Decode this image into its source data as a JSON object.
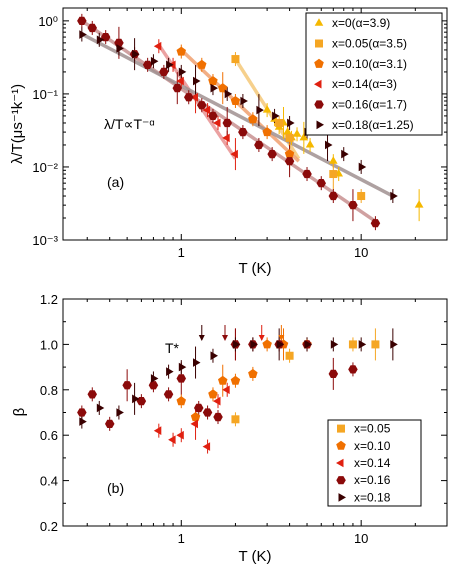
{
  "chart_data": [
    {
      "id": "a",
      "type": "scatter",
      "panel_label": "(a)",
      "xlabel": "T (K)",
      "ylabel": "λ/T(μs⁻¹k⁻¹)",
      "xscale": "log",
      "yscale": "log",
      "xlim": [
        0.22,
        30
      ],
      "ylim": [
        0.001,
        1.5
      ],
      "x_ticks": [
        1,
        10
      ],
      "y_ticks": [
        0.001,
        0.01,
        0.1,
        1
      ],
      "x_tick_labels": [
        "1",
        "10"
      ],
      "y_tick_labels": [
        "10⁻³",
        "10⁻²",
        "10⁻¹",
        "10⁰"
      ],
      "annotation": "λ/T∝T⁻ᵅ",
      "legend_position": "top-right",
      "series": [
        {
          "name": "x=0(α=3.9)",
          "marker": "triangle-up",
          "color": "#f5b800",
          "line_color": "#f5c878",
          "x": [
            3.0,
            3.3,
            3.5,
            3.7,
            3.9,
            4.1,
            4.4,
            4.8,
            5.2,
            7.0,
            7.5,
            21
          ],
          "y": [
            0.06,
            0.045,
            0.035,
            0.04,
            0.03,
            0.025,
            0.028,
            0.025,
            0.02,
            0.012,
            0.008,
            0.003
          ],
          "fit": [
            [
              2.0,
              0.3
            ],
            [
              4.5,
              0.013
            ]
          ]
        },
        {
          "name": "x=0.05(α=3.5)",
          "marker": "square",
          "color": "#f5a623",
          "line_color": "#f5c878",
          "x": [
            2.0,
            3.5,
            4.0,
            7.0,
            10
          ],
          "y": [
            0.3,
            0.04,
            0.025,
            0.008,
            0.004
          ],
          "fit": []
        },
        {
          "name": "x=0.10(α=3.1)",
          "marker": "pentagon",
          "color": "#f07000",
          "line_color": "#f0a070",
          "x": [
            1.0,
            1.3,
            1.5,
            1.7,
            2.0,
            2.5,
            3.0,
            4.0
          ],
          "y": [
            0.38,
            0.25,
            0.15,
            0.12,
            0.08,
            0.045,
            0.03,
            0.015
          ],
          "fit": [
            [
              1.0,
              0.4
            ],
            [
              4.5,
              0.012
            ]
          ]
        },
        {
          "name": "x=0.14(α=3)",
          "marker": "triangle-left",
          "color": "#e02010",
          "line_color": "#e89090",
          "x": [
            0.75,
            0.9,
            1.0,
            1.2,
            1.4,
            1.6,
            1.8,
            2.0
          ],
          "y": [
            0.45,
            0.25,
            0.15,
            0.09,
            0.06,
            0.04,
            0.025,
            0.015
          ],
          "fit": [
            [
              0.75,
              0.47
            ],
            [
              2.0,
              0.013
            ]
          ]
        },
        {
          "name": "x=0.16(α=1.7)",
          "marker": "hexagon",
          "color": "#8b0a0a",
          "line_color": "#c89090",
          "x": [
            0.28,
            0.32,
            0.38,
            0.45,
            0.55,
            0.65,
            0.8,
            0.95,
            1.1,
            1.3,
            1.5,
            1.8,
            2.2,
            2.7,
            3.2,
            4,
            5,
            6,
            7,
            9,
            12
          ],
          "y": [
            1.0,
            0.8,
            0.6,
            0.5,
            0.35,
            0.25,
            0.2,
            0.12,
            0.09,
            0.07,
            0.05,
            0.04,
            0.03,
            0.02,
            0.015,
            0.012,
            0.008,
            0.006,
            0.004,
            0.003,
            0.0017
          ],
          "fit": [
            [
              0.28,
              1.0
            ],
            [
              12,
              0.0018
            ]
          ]
        },
        {
          "name": "x=0.18(α=1.25)",
          "marker": "triangle-right",
          "color": "#3a0000",
          "line_color": "#a09090",
          "x": [
            0.28,
            0.35,
            0.45,
            0.55,
            0.7,
            0.85,
            1.0,
            1.2,
            1.5,
            1.8,
            2.2,
            2.7,
            3.3,
            4,
            5,
            6.5,
            8,
            10,
            15
          ],
          "y": [
            0.65,
            0.55,
            0.42,
            0.35,
            0.28,
            0.25,
            0.2,
            0.15,
            0.12,
            0.1,
            0.08,
            0.06,
            0.05,
            0.04,
            0.03,
            0.02,
            0.015,
            0.01,
            0.004
          ],
          "fit": [
            [
              0.28,
              0.66
            ],
            [
              15,
              0.004
            ]
          ]
        }
      ]
    },
    {
      "id": "b",
      "type": "scatter",
      "panel_label": "(b)",
      "xlabel": "T (K)",
      "ylabel": "β",
      "xscale": "log",
      "yscale": "linear",
      "xlim": [
        0.22,
        30
      ],
      "ylim": [
        0.2,
        1.2
      ],
      "x_ticks": [
        1,
        10
      ],
      "y_ticks": [
        0.2,
        0.4,
        0.6,
        0.8,
        1.0,
        1.2
      ],
      "x_tick_labels": [
        "1",
        "10"
      ],
      "y_tick_labels": [
        "0.2",
        "0.4",
        "0.6",
        "0.8",
        "1.0",
        "1.2"
      ],
      "annotation": "T*",
      "legend_position": "bottom-right",
      "tstar_arrows": [
        {
          "x": 1.3,
          "color": "#3a0000"
        },
        {
          "x": 1.75,
          "color": "#8b0a0a"
        },
        {
          "x": 2.8,
          "color": "#e02010"
        },
        {
          "x": 3.6,
          "color": "#f07000"
        }
      ],
      "series": [
        {
          "name": "x=0.05",
          "marker": "square",
          "color": "#f5a623",
          "x": [
            2.0,
            4.0,
            9.0,
            12.0
          ],
          "y": [
            0.67,
            0.95,
            1.0,
            1.0
          ]
        },
        {
          "name": "x=0.10",
          "marker": "pentagon",
          "color": "#f07000",
          "x": [
            1.0,
            1.2,
            1.5,
            1.7,
            2.0,
            2.5,
            3.0,
            3.7,
            5.0
          ],
          "y": [
            0.75,
            0.68,
            0.78,
            0.84,
            0.84,
            0.87,
            1.0,
            1.0,
            1.0
          ]
        },
        {
          "name": "x=0.14",
          "marker": "triangle-left",
          "color": "#e02010",
          "x": [
            0.75,
            0.9,
            1.0,
            1.2,
            1.4,
            1.6,
            1.8,
            2.0
          ],
          "y": [
            0.62,
            0.58,
            0.6,
            0.65,
            0.55,
            0.75,
            0.8,
            1.0
          ]
        },
        {
          "name": "x=0.16",
          "marker": "hexagon",
          "color": "#8b0a0a",
          "x": [
            0.28,
            0.32,
            0.4,
            0.5,
            0.6,
            0.7,
            0.85,
            1.0,
            1.25,
            1.4,
            1.6,
            2.0,
            2.5,
            3.5,
            5.0,
            7.0,
            9.0
          ],
          "y": [
            0.7,
            0.78,
            0.65,
            0.82,
            0.75,
            0.82,
            0.78,
            0.85,
            0.72,
            0.7,
            0.68,
            1.0,
            1.0,
            1.0,
            1.0,
            0.87,
            0.89
          ]
        },
        {
          "name": "x=0.18",
          "marker": "triangle-right",
          "color": "#3a0000",
          "x": [
            0.28,
            0.35,
            0.45,
            0.55,
            0.7,
            0.85,
            1.0,
            1.2,
            1.5,
            2.0,
            2.5,
            3.5,
            5.0,
            7.0,
            10,
            15
          ],
          "y": [
            0.66,
            0.72,
            0.7,
            0.76,
            0.85,
            0.88,
            0.9,
            0.92,
            0.95,
            1.0,
            1.0,
            1.0,
            1.0,
            1.0,
            1.0,
            1.0
          ]
        }
      ]
    }
  ]
}
